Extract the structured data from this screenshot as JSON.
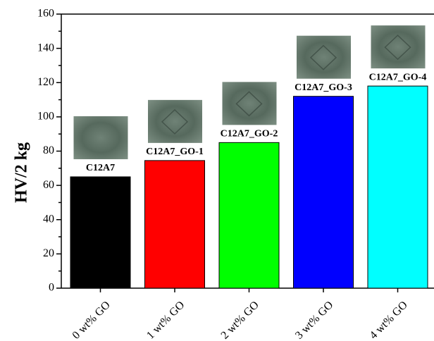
{
  "chart_data": {
    "type": "bar",
    "y_label": "HV/2 kg",
    "categories": [
      "0 wt% GO",
      "1 wt% GO",
      "2 wt% GO",
      "3 wt% GO",
      "4 wt% GO"
    ],
    "values": [
      65,
      74.5,
      85,
      112,
      118
    ],
    "colors": [
      "#000000",
      "#ff0000",
      "#00ff00",
      "#0000ff",
      "#00ffff"
    ],
    "bar_labels": [
      "C12A7",
      "C12A7_GO-1",
      "C12A7_GO-2",
      "C12A7_GO-3",
      "C12A7_GO-4"
    ],
    "ylim": [
      0,
      160
    ],
    "yticks": [
      0,
      20,
      40,
      60,
      80,
      100,
      120,
      140,
      160
    ],
    "grid": false
  }
}
